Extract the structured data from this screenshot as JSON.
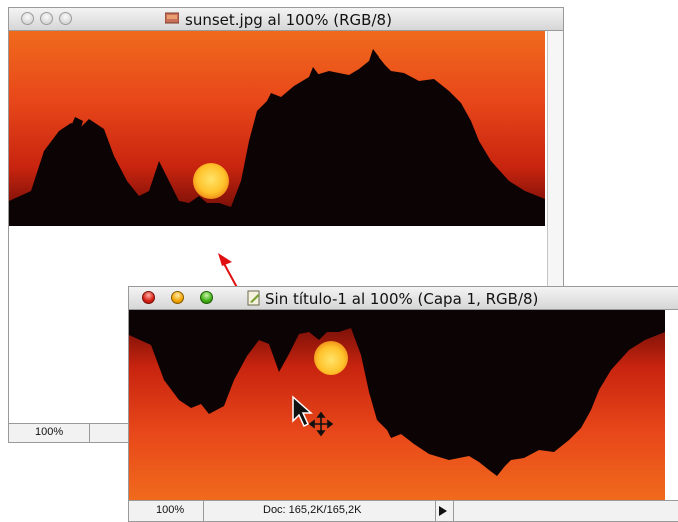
{
  "window_back": {
    "title": "sunset.jpg al 100% (RGB/8)",
    "zoom": "100%"
  },
  "window_front": {
    "title": "Sin título-1 al 100% (Capa 1, RGB/8)",
    "zoom": "100%",
    "doc_info": "Doc: 165,2K/165,2K"
  },
  "colors": {
    "sky_top": "#e23a12",
    "sky_mid": "#f2711c",
    "sun": "#ffc22a",
    "drag_arrow": "#e01010"
  },
  "icons": [
    "close-icon",
    "minimize-icon",
    "zoom-icon",
    "document-icon",
    "move-cursor-icon",
    "menu-arrow-icon"
  ]
}
